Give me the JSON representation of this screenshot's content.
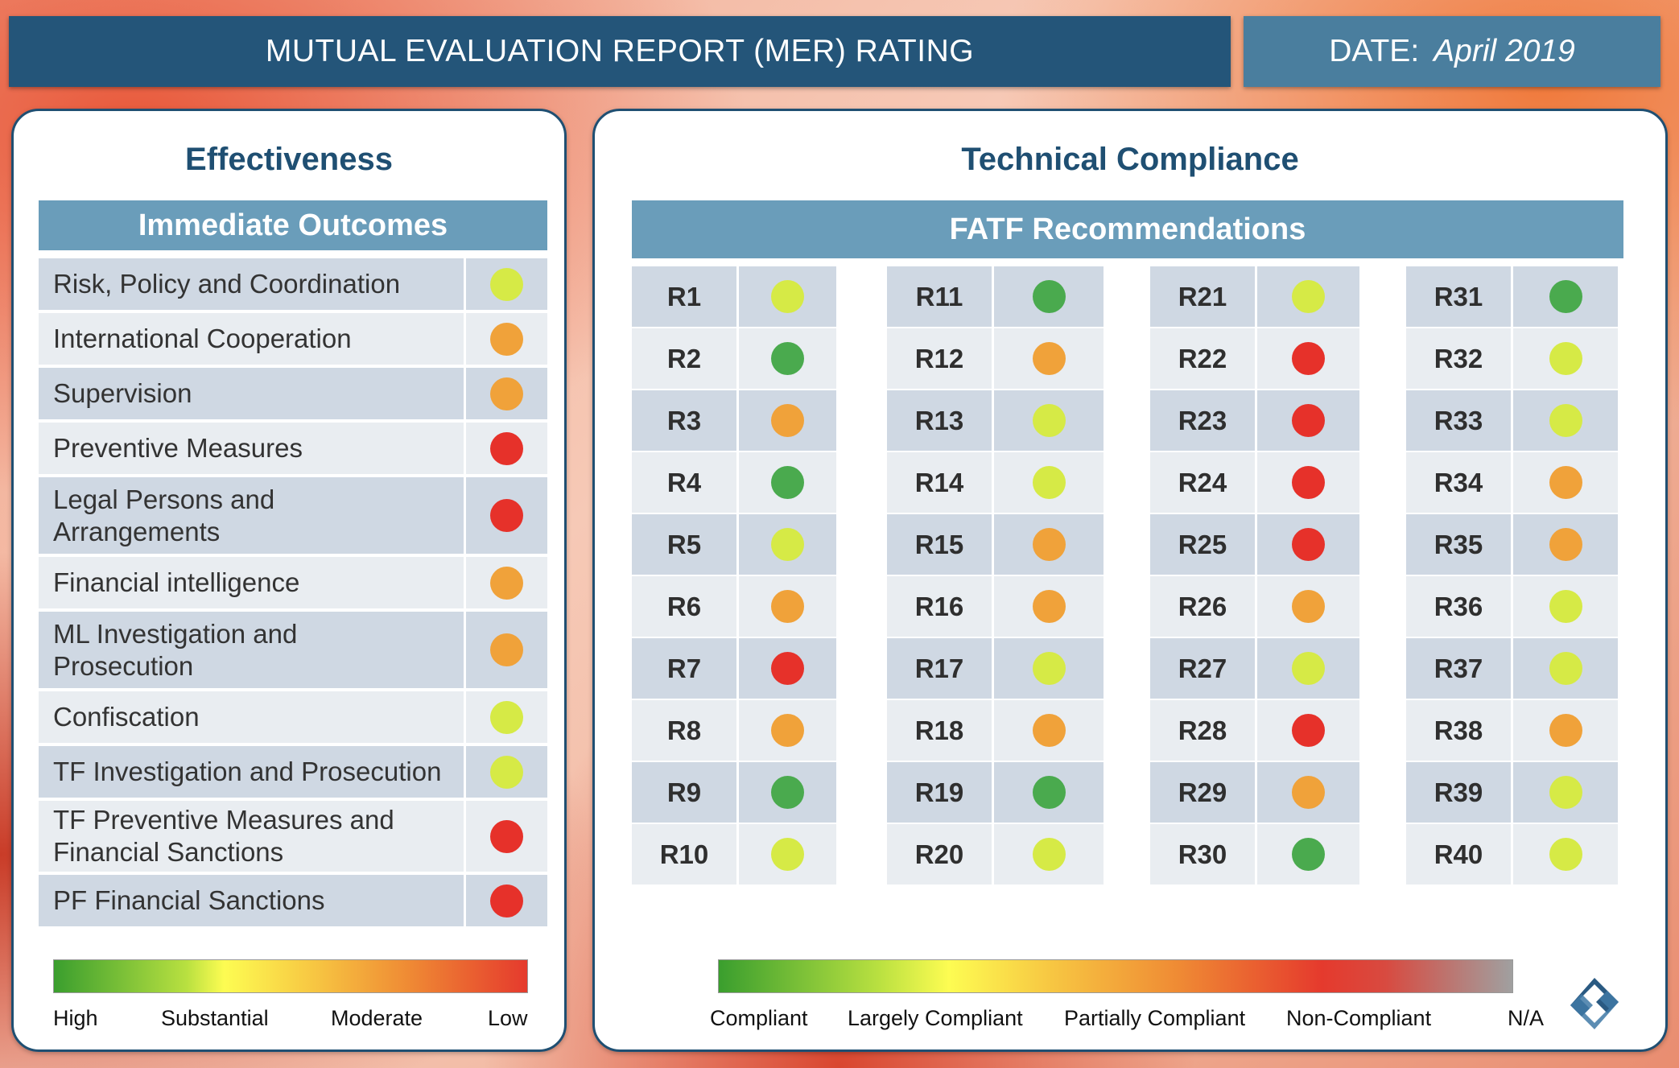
{
  "header": {
    "title": "MUTUAL EVALUATION REPORT (MER) RATING",
    "date_label": "DATE:",
    "date_value": "April 2019"
  },
  "colors": {
    "high": "#4aaa4e",
    "substantial": "#d6ea46",
    "moderate": "#f0a23a",
    "low": "#e6312a"
  },
  "effectiveness": {
    "title": "Effectiveness",
    "subheader": "Immediate Outcomes",
    "outcomes": [
      {
        "label": "Risk, Policy and Coordination",
        "rating": "substantial"
      },
      {
        "label": "International Cooperation",
        "rating": "moderate"
      },
      {
        "label": "Supervision",
        "rating": "moderate"
      },
      {
        "label": "Preventive Measures",
        "rating": "low"
      },
      {
        "label": "Legal Persons and\nArrangements",
        "rating": "low"
      },
      {
        "label": "Financial intelligence",
        "rating": "moderate"
      },
      {
        "label": "ML Investigation and\nProsecution",
        "rating": "moderate"
      },
      {
        "label": "Confiscation",
        "rating": "substantial"
      },
      {
        "label": "TF Investigation and Prosecution",
        "rating": "substantial"
      },
      {
        "label": "TF Preventive Measures and\nFinancial Sanctions",
        "rating": "low"
      },
      {
        "label": "PF Financial Sanctions",
        "rating": "low"
      }
    ],
    "scale_labels": [
      "High",
      "Substantial",
      "Moderate",
      "Low"
    ]
  },
  "technical": {
    "title": "Technical Compliance",
    "subheader": "FATF Recommendations",
    "recommendations": [
      {
        "label": "R1",
        "rating": "substantial"
      },
      {
        "label": "R2",
        "rating": "high"
      },
      {
        "label": "R3",
        "rating": "moderate"
      },
      {
        "label": "R4",
        "rating": "high"
      },
      {
        "label": "R5",
        "rating": "substantial"
      },
      {
        "label": "R6",
        "rating": "moderate"
      },
      {
        "label": "R7",
        "rating": "low"
      },
      {
        "label": "R8",
        "rating": "moderate"
      },
      {
        "label": "R9",
        "rating": "high"
      },
      {
        "label": "R10",
        "rating": "substantial"
      },
      {
        "label": "R11",
        "rating": "high"
      },
      {
        "label": "R12",
        "rating": "moderate"
      },
      {
        "label": "R13",
        "rating": "substantial"
      },
      {
        "label": "R14",
        "rating": "substantial"
      },
      {
        "label": "R15",
        "rating": "moderate"
      },
      {
        "label": "R16",
        "rating": "moderate"
      },
      {
        "label": "R17",
        "rating": "substantial"
      },
      {
        "label": "R18",
        "rating": "moderate"
      },
      {
        "label": "R19",
        "rating": "high"
      },
      {
        "label": "R20",
        "rating": "substantial"
      },
      {
        "label": "R21",
        "rating": "substantial"
      },
      {
        "label": "R22",
        "rating": "low"
      },
      {
        "label": "R23",
        "rating": "low"
      },
      {
        "label": "R24",
        "rating": "low"
      },
      {
        "label": "R25",
        "rating": "low"
      },
      {
        "label": "R26",
        "rating": "moderate"
      },
      {
        "label": "R27",
        "rating": "substantial"
      },
      {
        "label": "R28",
        "rating": "low"
      },
      {
        "label": "R29",
        "rating": "moderate"
      },
      {
        "label": "R30",
        "rating": "high"
      },
      {
        "label": "R31",
        "rating": "high"
      },
      {
        "label": "R32",
        "rating": "substantial"
      },
      {
        "label": "R33",
        "rating": "substantial"
      },
      {
        "label": "R34",
        "rating": "moderate"
      },
      {
        "label": "R35",
        "rating": "moderate"
      },
      {
        "label": "R36",
        "rating": "substantial"
      },
      {
        "label": "R37",
        "rating": "substantial"
      },
      {
        "label": "R38",
        "rating": "moderate"
      },
      {
        "label": "R39",
        "rating": "substantial"
      },
      {
        "label": "R40",
        "rating": "substantial"
      }
    ],
    "scale_labels": [
      "Compliant",
      "Largely Compliant",
      "Partially Compliant",
      "Non-Compliant",
      "N/A"
    ]
  },
  "logo_icon": "diamond-s-logo-icon"
}
